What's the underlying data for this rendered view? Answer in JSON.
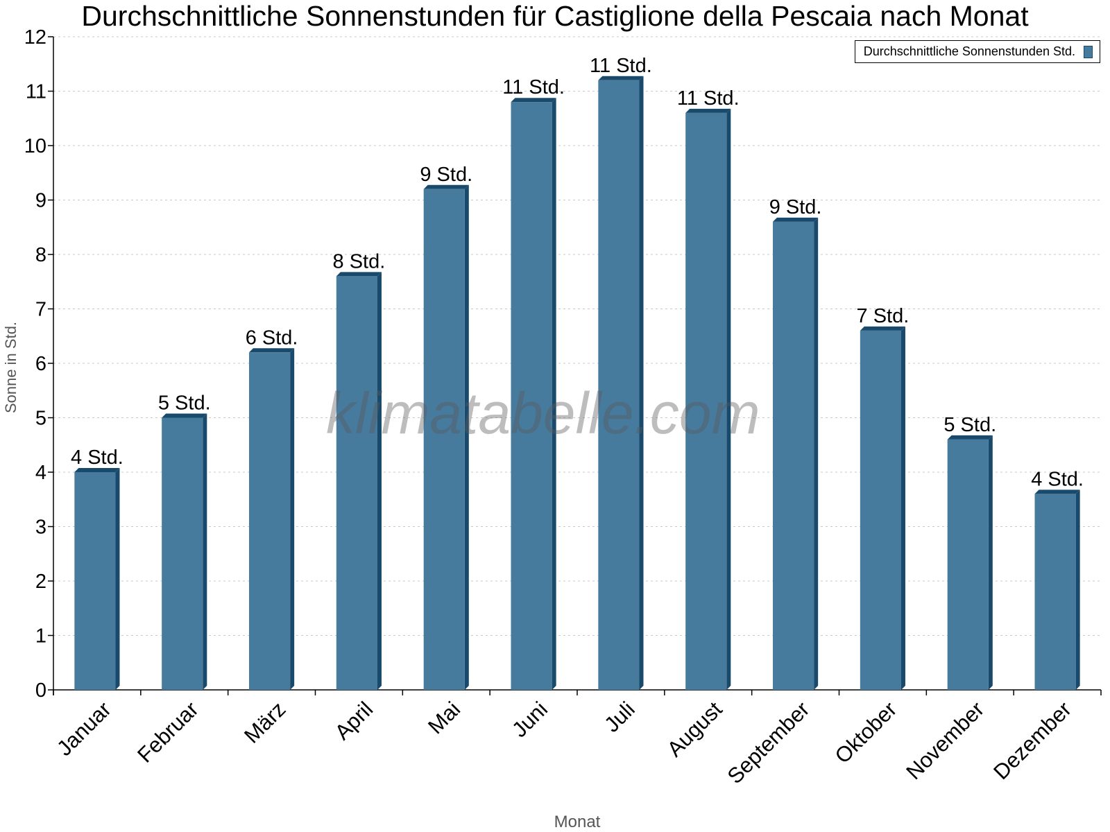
{
  "chart_data": {
    "type": "bar",
    "title": "Durchschnittliche Sonnenstunden für Castiglione della Pescaia nach Monat",
    "xlabel": "Monat",
    "ylabel": "Sonne in Std.",
    "ylim": [
      0,
      12
    ],
    "yticks": [
      0,
      1,
      2,
      3,
      4,
      5,
      6,
      7,
      8,
      9,
      10,
      11,
      12
    ],
    "grid": true,
    "legend_position": "top-right",
    "categories": [
      "Januar",
      "Februar",
      "März",
      "April",
      "Mai",
      "Juni",
      "Juli",
      "August",
      "September",
      "Oktober",
      "November",
      "Dezember"
    ],
    "series": [
      {
        "name": "Durchschnittliche Sonnenstunden Std.",
        "values": [
          4.0,
          5.0,
          6.2,
          7.6,
          9.2,
          10.8,
          11.2,
          10.6,
          8.6,
          6.6,
          4.6,
          3.6
        ],
        "labels": [
          "4 Std.",
          "5 Std.",
          "6 Std.",
          "8 Std.",
          "9 Std.",
          "11 Std.",
          "11 Std.",
          "11 Std.",
          "9 Std.",
          "7 Std.",
          "5 Std.",
          "4 Std."
        ]
      }
    ],
    "colors": {
      "bar": "#467b9e",
      "bar_shade": "#1a4a6b"
    },
    "watermark": "klimatabelle.com"
  }
}
